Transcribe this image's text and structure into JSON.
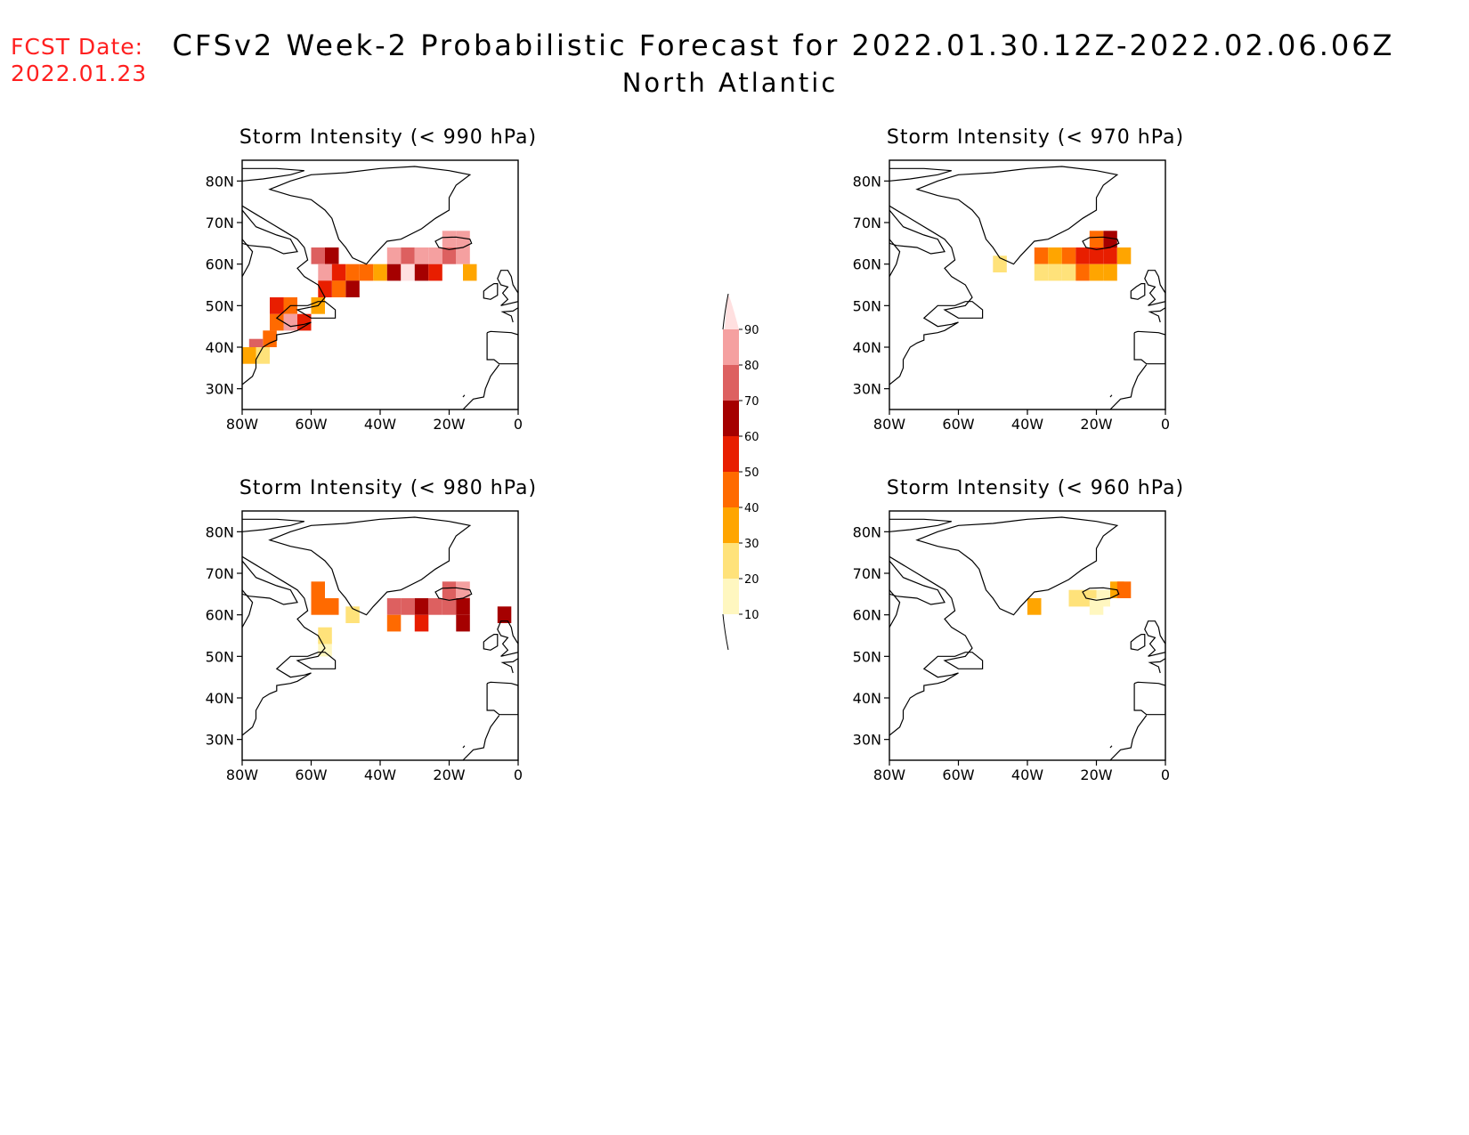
{
  "header": {
    "fcst_label": "FCST Date:",
    "fcst_date": "2022.01.23",
    "title": "CFSv2 Week-2 Probabilistic Forecast for 2022.01.30.12Z-2022.02.06.06Z",
    "region": "North Atlantic"
  },
  "axes": {
    "lat_ticks": [
      "80N",
      "70N",
      "60N",
      "50N",
      "40N",
      "30N"
    ],
    "lon_ticks": [
      "80W",
      "60W",
      "40W",
      "20W",
      "0"
    ]
  },
  "panels": [
    {
      "title": "Storm Intensity (< 990 hPa)",
      "cells": [
        {
          "lon": -58,
          "lat": 62,
          "v": 70
        },
        {
          "lon": -54,
          "lat": 62,
          "v": 60
        },
        {
          "lon": -56,
          "lat": 58,
          "v": 85
        },
        {
          "lon": -52,
          "lat": 58,
          "v": 50
        },
        {
          "lon": -48,
          "lat": 58,
          "v": 40
        },
        {
          "lon": -44,
          "lat": 58,
          "v": 40
        },
        {
          "lon": -40,
          "lat": 58,
          "v": 35
        },
        {
          "lon": -36,
          "lat": 62,
          "v": 80
        },
        {
          "lon": -32,
          "lat": 62,
          "v": 75
        },
        {
          "lon": -28,
          "lat": 62,
          "v": 80
        },
        {
          "lon": -24,
          "lat": 62,
          "v": 85
        },
        {
          "lon": -20,
          "lat": 62,
          "v": 75
        },
        {
          "lon": -16,
          "lat": 62,
          "v": 80
        },
        {
          "lon": -20,
          "lat": 66,
          "v": 85
        },
        {
          "lon": -16,
          "lat": 66,
          "v": 85
        },
        {
          "lon": -36,
          "lat": 58,
          "v": 60
        },
        {
          "lon": -32,
          "lat": 58,
          "v": 90
        },
        {
          "lon": -28,
          "lat": 58,
          "v": 65
        },
        {
          "lon": -24,
          "lat": 58,
          "v": 55
        },
        {
          "lon": -48,
          "lat": 54,
          "v": 60
        },
        {
          "lon": -52,
          "lat": 54,
          "v": 45
        },
        {
          "lon": -56,
          "lat": 54,
          "v": 55
        },
        {
          "lon": -58,
          "lat": 50,
          "v": 30
        },
        {
          "lon": -66,
          "lat": 50,
          "v": 45
        },
        {
          "lon": -62,
          "lat": 46,
          "v": 50
        },
        {
          "lon": -66,
          "lat": 46,
          "v": 80
        },
        {
          "lon": -70,
          "lat": 46,
          "v": 40
        },
        {
          "lon": -70,
          "lat": 50,
          "v": 55
        },
        {
          "lon": -72,
          "lat": 42,
          "v": 45
        },
        {
          "lon": -76,
          "lat": 40,
          "v": 70
        },
        {
          "lon": -78,
          "lat": 38,
          "v": 35
        },
        {
          "lon": -74,
          "lat": 38,
          "v": 20
        },
        {
          "lon": -14,
          "lat": 58,
          "v": 30
        }
      ]
    },
    {
      "title": "Storm Intensity (< 980 hPa)",
      "cells": [
        {
          "lon": -58,
          "lat": 66,
          "v": 40
        },
        {
          "lon": -58,
          "lat": 62,
          "v": 45
        },
        {
          "lon": -54,
          "lat": 62,
          "v": 40
        },
        {
          "lon": -48,
          "lat": 60,
          "v": 20
        },
        {
          "lon": -36,
          "lat": 62,
          "v": 70
        },
        {
          "lon": -32,
          "lat": 62,
          "v": 75
        },
        {
          "lon": -28,
          "lat": 62,
          "v": 65
        },
        {
          "lon": -24,
          "lat": 62,
          "v": 70
        },
        {
          "lon": -20,
          "lat": 62,
          "v": 70
        },
        {
          "lon": -16,
          "lat": 62,
          "v": 65
        },
        {
          "lon": -20,
          "lat": 66,
          "v": 75
        },
        {
          "lon": -16,
          "lat": 66,
          "v": 80
        },
        {
          "lon": -36,
          "lat": 58,
          "v": 45
        },
        {
          "lon": -28,
          "lat": 58,
          "v": 55
        },
        {
          "lon": -16,
          "lat": 58,
          "v": 60
        },
        {
          "lon": -56,
          "lat": 52,
          "v": 15
        },
        {
          "lon": -56,
          "lat": 55,
          "v": 20
        },
        {
          "lon": -4,
          "lat": 60,
          "v": 65
        }
      ]
    },
    {
      "title": "Storm Intensity (< 970 hPa)",
      "cells": [
        {
          "lon": -48,
          "lat": 60,
          "v": 20
        },
        {
          "lon": -36,
          "lat": 62,
          "v": 40
        },
        {
          "lon": -32,
          "lat": 62,
          "v": 30
        },
        {
          "lon": -28,
          "lat": 62,
          "v": 45
        },
        {
          "lon": -24,
          "lat": 62,
          "v": 55
        },
        {
          "lon": -20,
          "lat": 62,
          "v": 55
        },
        {
          "lon": -16,
          "lat": 62,
          "v": 50
        },
        {
          "lon": -16,
          "lat": 66,
          "v": 60
        },
        {
          "lon": -20,
          "lat": 66,
          "v": 45
        },
        {
          "lon": -36,
          "lat": 58,
          "v": 20
        },
        {
          "lon": -32,
          "lat": 58,
          "v": 20
        },
        {
          "lon": -28,
          "lat": 58,
          "v": 25
        },
        {
          "lon": -24,
          "lat": 58,
          "v": 40
        },
        {
          "lon": -20,
          "lat": 58,
          "v": 35
        },
        {
          "lon": -16,
          "lat": 58,
          "v": 30
        },
        {
          "lon": -12,
          "lat": 62,
          "v": 30
        }
      ]
    },
    {
      "title": "Storm Intensity (< 960 hPa)",
      "cells": [
        {
          "lon": -38,
          "lat": 62,
          "v": 30
        },
        {
          "lon": -26,
          "lat": 64,
          "v": 25
        },
        {
          "lon": -22,
          "lat": 64,
          "v": 20
        },
        {
          "lon": -18,
          "lat": 64,
          "v": 15
        },
        {
          "lon": -14,
          "lat": 66,
          "v": 35
        },
        {
          "lon": -12,
          "lat": 66,
          "v": 40
        },
        {
          "lon": -20,
          "lat": 62,
          "v": 10
        }
      ]
    }
  ],
  "colorbar": {
    "levels": [
      "10",
      "20",
      "30",
      "40",
      "50",
      "60",
      "70",
      "80",
      "90"
    ],
    "colors": [
      "#ffffff",
      "#fff7c0",
      "#ffe27a",
      "#ffa500",
      "#ff6a00",
      "#e81e00",
      "#a50000",
      "#dd6060",
      "#f5a0a0",
      "#ffe0e0"
    ]
  }
}
